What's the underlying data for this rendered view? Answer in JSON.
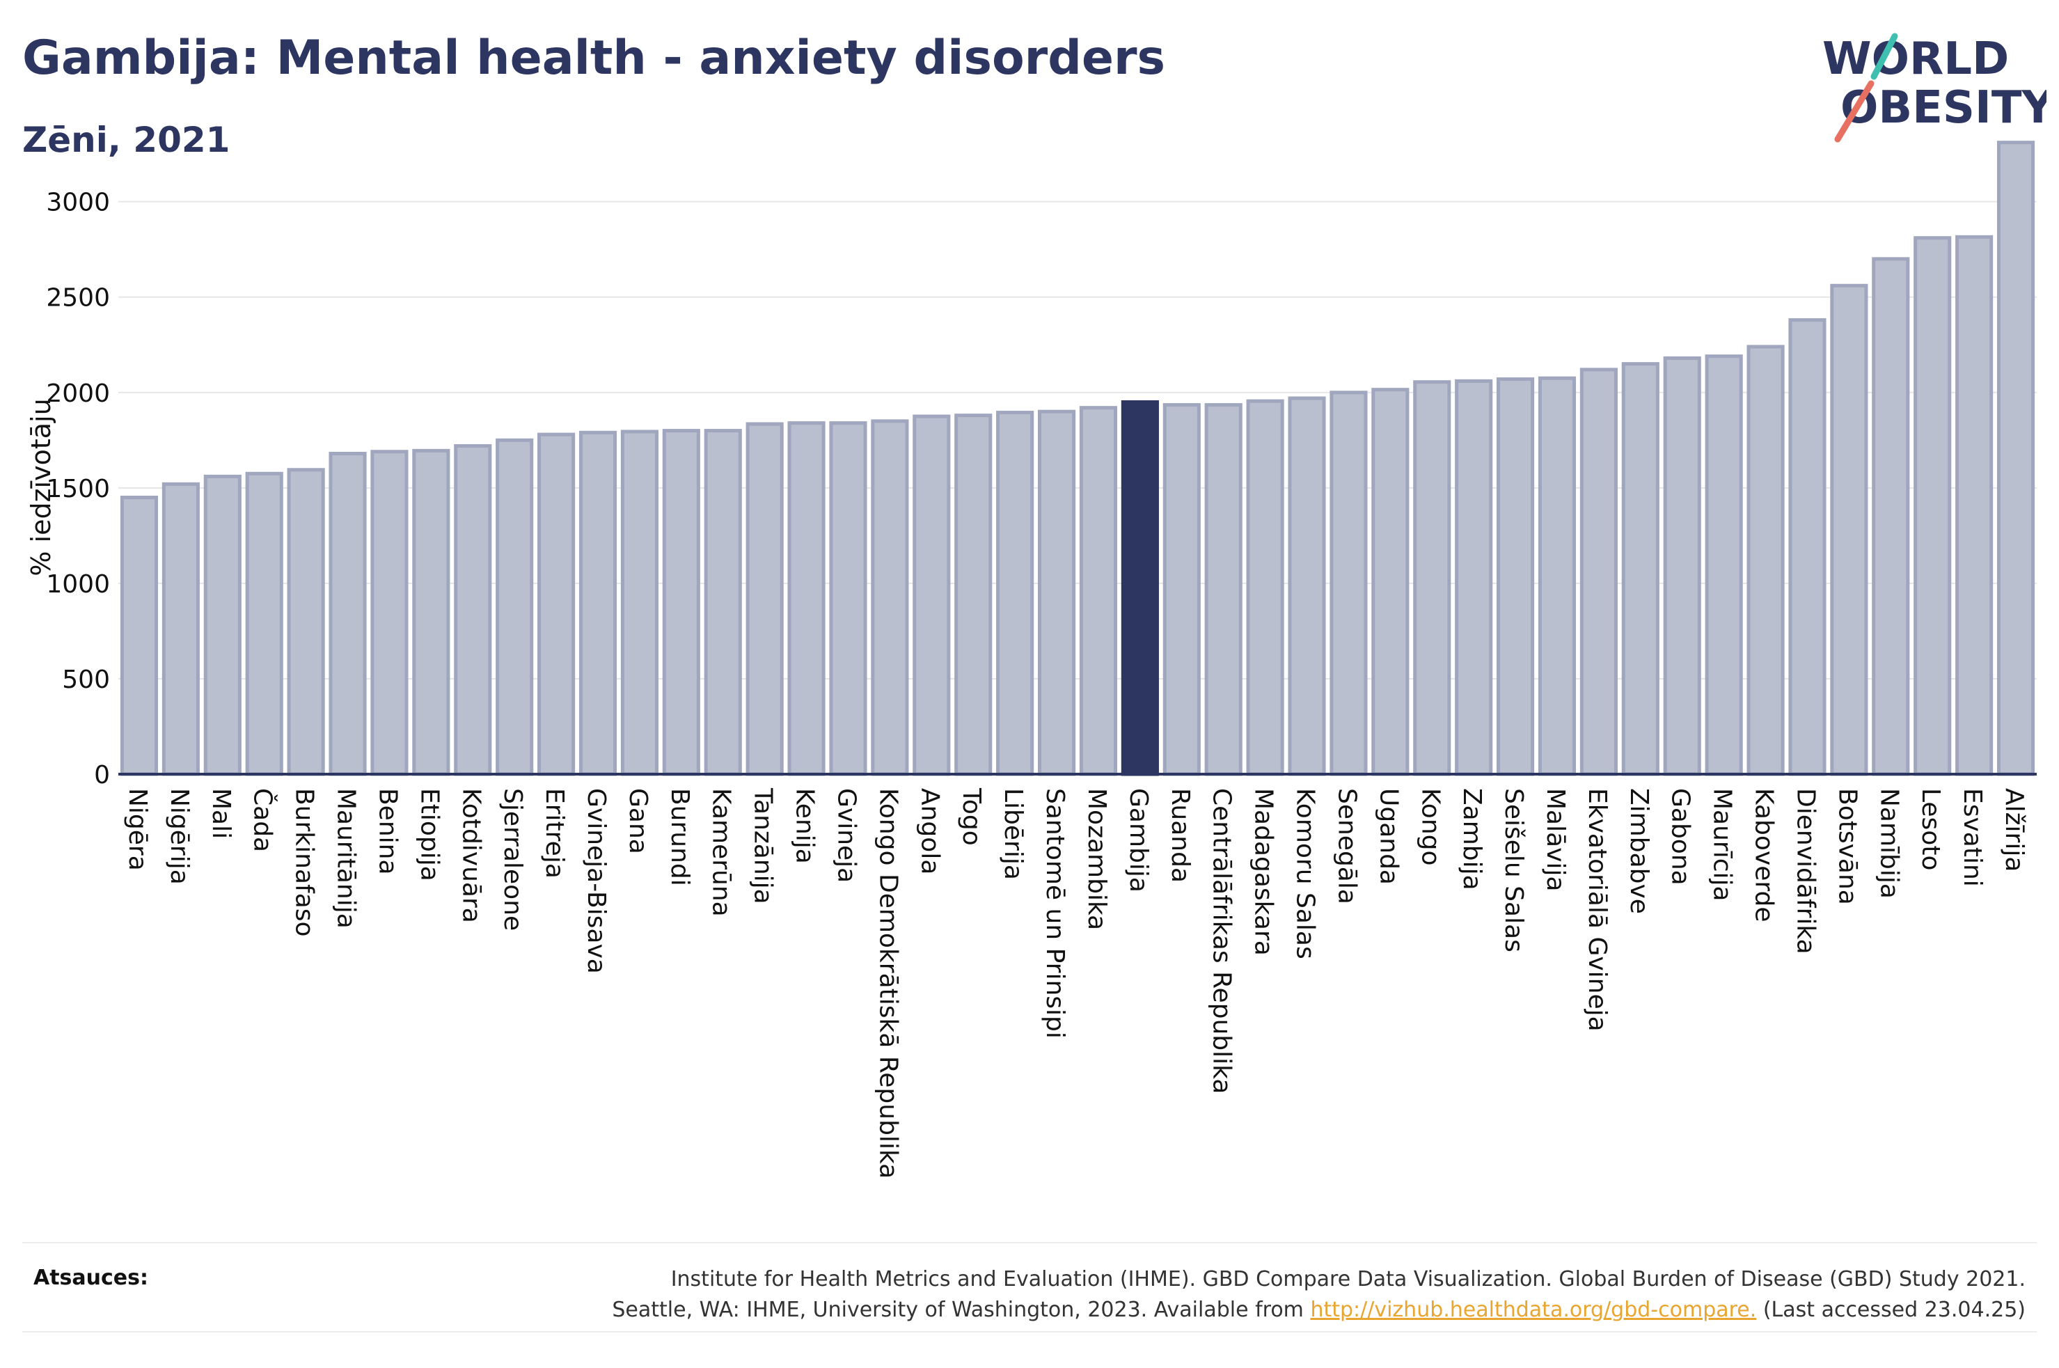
{
  "header": {
    "title": "Gambija: Mental health - anxiety disorders",
    "subtitle": "Zēni, 2021"
  },
  "logo": {
    "line1": "WORLD",
    "line2": "OBESITY"
  },
  "chart_data": {
    "type": "bar",
    "ylabel": "% iedzīvotāju",
    "ylim": [
      0,
      3400
    ],
    "yticks": [
      0,
      500,
      1000,
      1500,
      2000,
      2500,
      3000
    ],
    "grid": true,
    "highlight": "Gambija",
    "categories": [
      "Nigēra",
      "Nigērija",
      "Mali",
      "Čada",
      "Burkinafaso",
      "Mauritānija",
      "Benina",
      "Etiopija",
      "Kotdivuāra",
      "Sjerraleone",
      "Eritreja",
      "Gvineja-Bisava",
      "Gana",
      "Burundi",
      "Kamerūna",
      "Tanzānija",
      "Kenija",
      "Gvineja",
      "Kongo Demokrātiskā Republika",
      "Angola",
      "Togo",
      "Libērija",
      "Santomē un Prinsipi",
      "Mozambika",
      "Gambija",
      "Ruanda",
      "Centrālāfrikas Republika",
      "Madagaskara",
      "Komoru Salas",
      "Senegāla",
      "Uganda",
      "Kongo",
      "Zambija",
      "Seišelu Salas",
      "Malāvija",
      "Ekvatoriālā Gvineja",
      "Zimbabve",
      "Gabona",
      "Maurīcija",
      "Kaboverde",
      "Dienvidāfrika",
      "Botsvāna",
      "Namībija",
      "Lesoto",
      "Esvatini",
      "Alžīrija"
    ],
    "values": [
      1450,
      1520,
      1560,
      1575,
      1595,
      1680,
      1690,
      1695,
      1720,
      1750,
      1780,
      1790,
      1795,
      1800,
      1800,
      1835,
      1840,
      1840,
      1850,
      1875,
      1880,
      1895,
      1900,
      1920,
      1950,
      1935,
      1935,
      1955,
      1970,
      2000,
      2015,
      2055,
      2060,
      2070,
      2075,
      2120,
      2150,
      2180,
      2190,
      2240,
      2380,
      2560,
      2700,
      2810,
      2815,
      3310
    ],
    "colors": {
      "bar": "#babfcf",
      "bar_border": "#9fa6bd",
      "highlight": "#2d3561",
      "axis": "#2d3561",
      "grid": "#e6e6e6"
    }
  },
  "sources": {
    "label": "Atsauces:",
    "line1": "Institute for Health Metrics and Evaluation (IHME). GBD Compare Data Visualization. Global Burden of Disease (GBD) Study 2021.",
    "line2_prefix": "Seattle, WA: IHME, University of Washington, 2023. Available from ",
    "link": "http://vizhub.healthdata.org/gbd-compare.",
    "line2_suffix": " (Last accessed 23.04.25)"
  }
}
